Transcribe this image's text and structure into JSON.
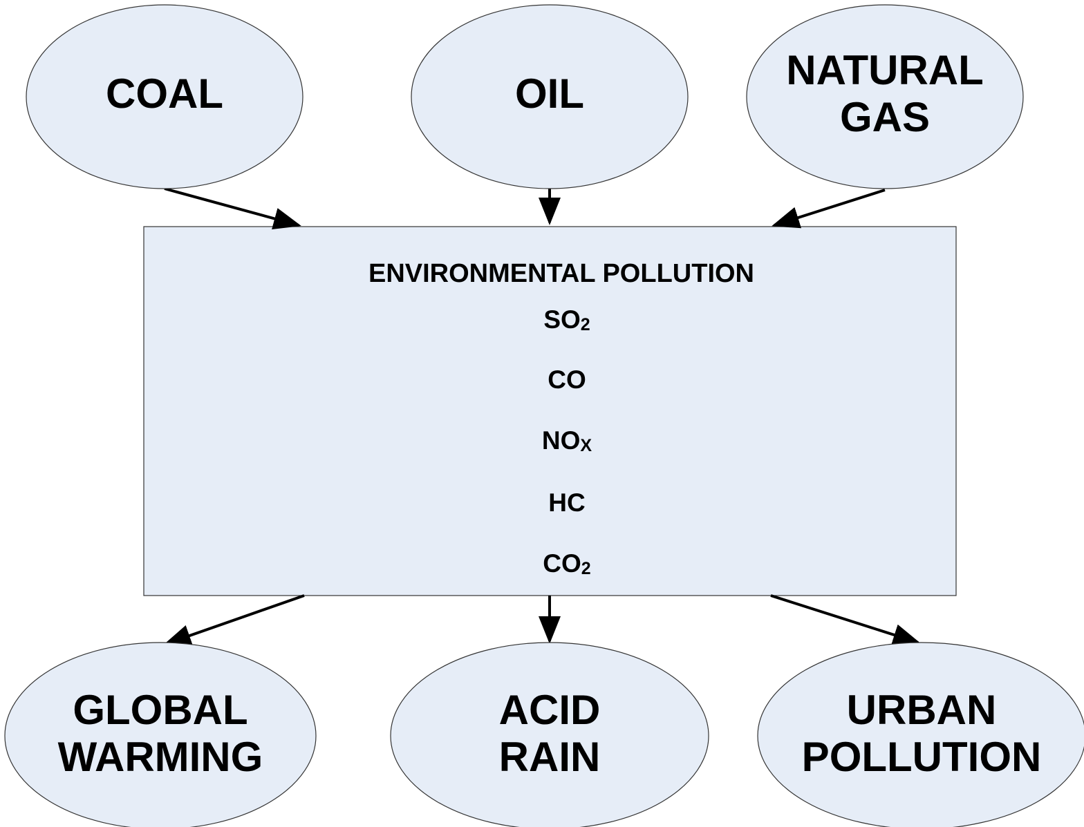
{
  "sources": [
    {
      "lines": [
        "COAL"
      ]
    },
    {
      "lines": [
        "OIL"
      ]
    },
    {
      "lines": [
        "NATURAL",
        "GAS"
      ]
    }
  ],
  "center": {
    "title": "ENVIRONMENTAL POLLUTION",
    "items": [
      {
        "text": "SO",
        "sub": "2"
      },
      {
        "text": "CO"
      },
      {
        "text": "NO",
        "sub": "X"
      },
      {
        "text": "HC"
      },
      {
        "text": "CO",
        "sub": "2"
      }
    ]
  },
  "effects": [
    {
      "lines": [
        "GLOBAL",
        "WARMING"
      ]
    },
    {
      "lines": [
        "ACID",
        "RAIN"
      ]
    },
    {
      "lines": [
        "URBAN",
        "POLLUTION"
      ]
    }
  ]
}
